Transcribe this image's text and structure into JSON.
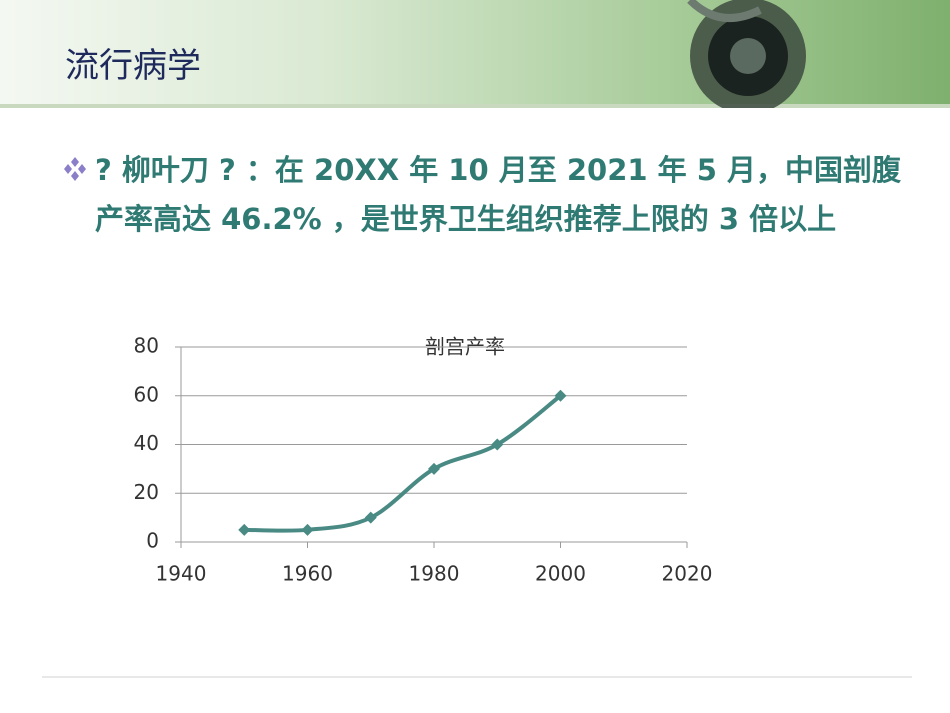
{
  "header": {
    "title": "流行病学"
  },
  "body": {
    "bullet": "? 柳叶刀 ? ：在 20XX 年 10 月至 2021 年 5 月，中国剖腹产率高达 46.2% ，是世界卫生组织推荐上限的 3 倍以上"
  },
  "chart_data": {
    "type": "line",
    "title": "剖宫产率",
    "x": [
      1950,
      1960,
      1970,
      1980,
      1990,
      2000
    ],
    "series": [
      {
        "name": "剖宫产率",
        "color": "#4a8a84",
        "values": [
          5,
          5,
          10,
          30,
          40,
          60
        ]
      }
    ],
    "xlim": [
      1940,
      2020
    ],
    "xticks": [
      1940,
      1960,
      1980,
      2000,
      2020
    ],
    "ylim": [
      0,
      80
    ],
    "yticks": [
      0,
      20,
      40,
      60,
      80
    ],
    "grid": true
  }
}
